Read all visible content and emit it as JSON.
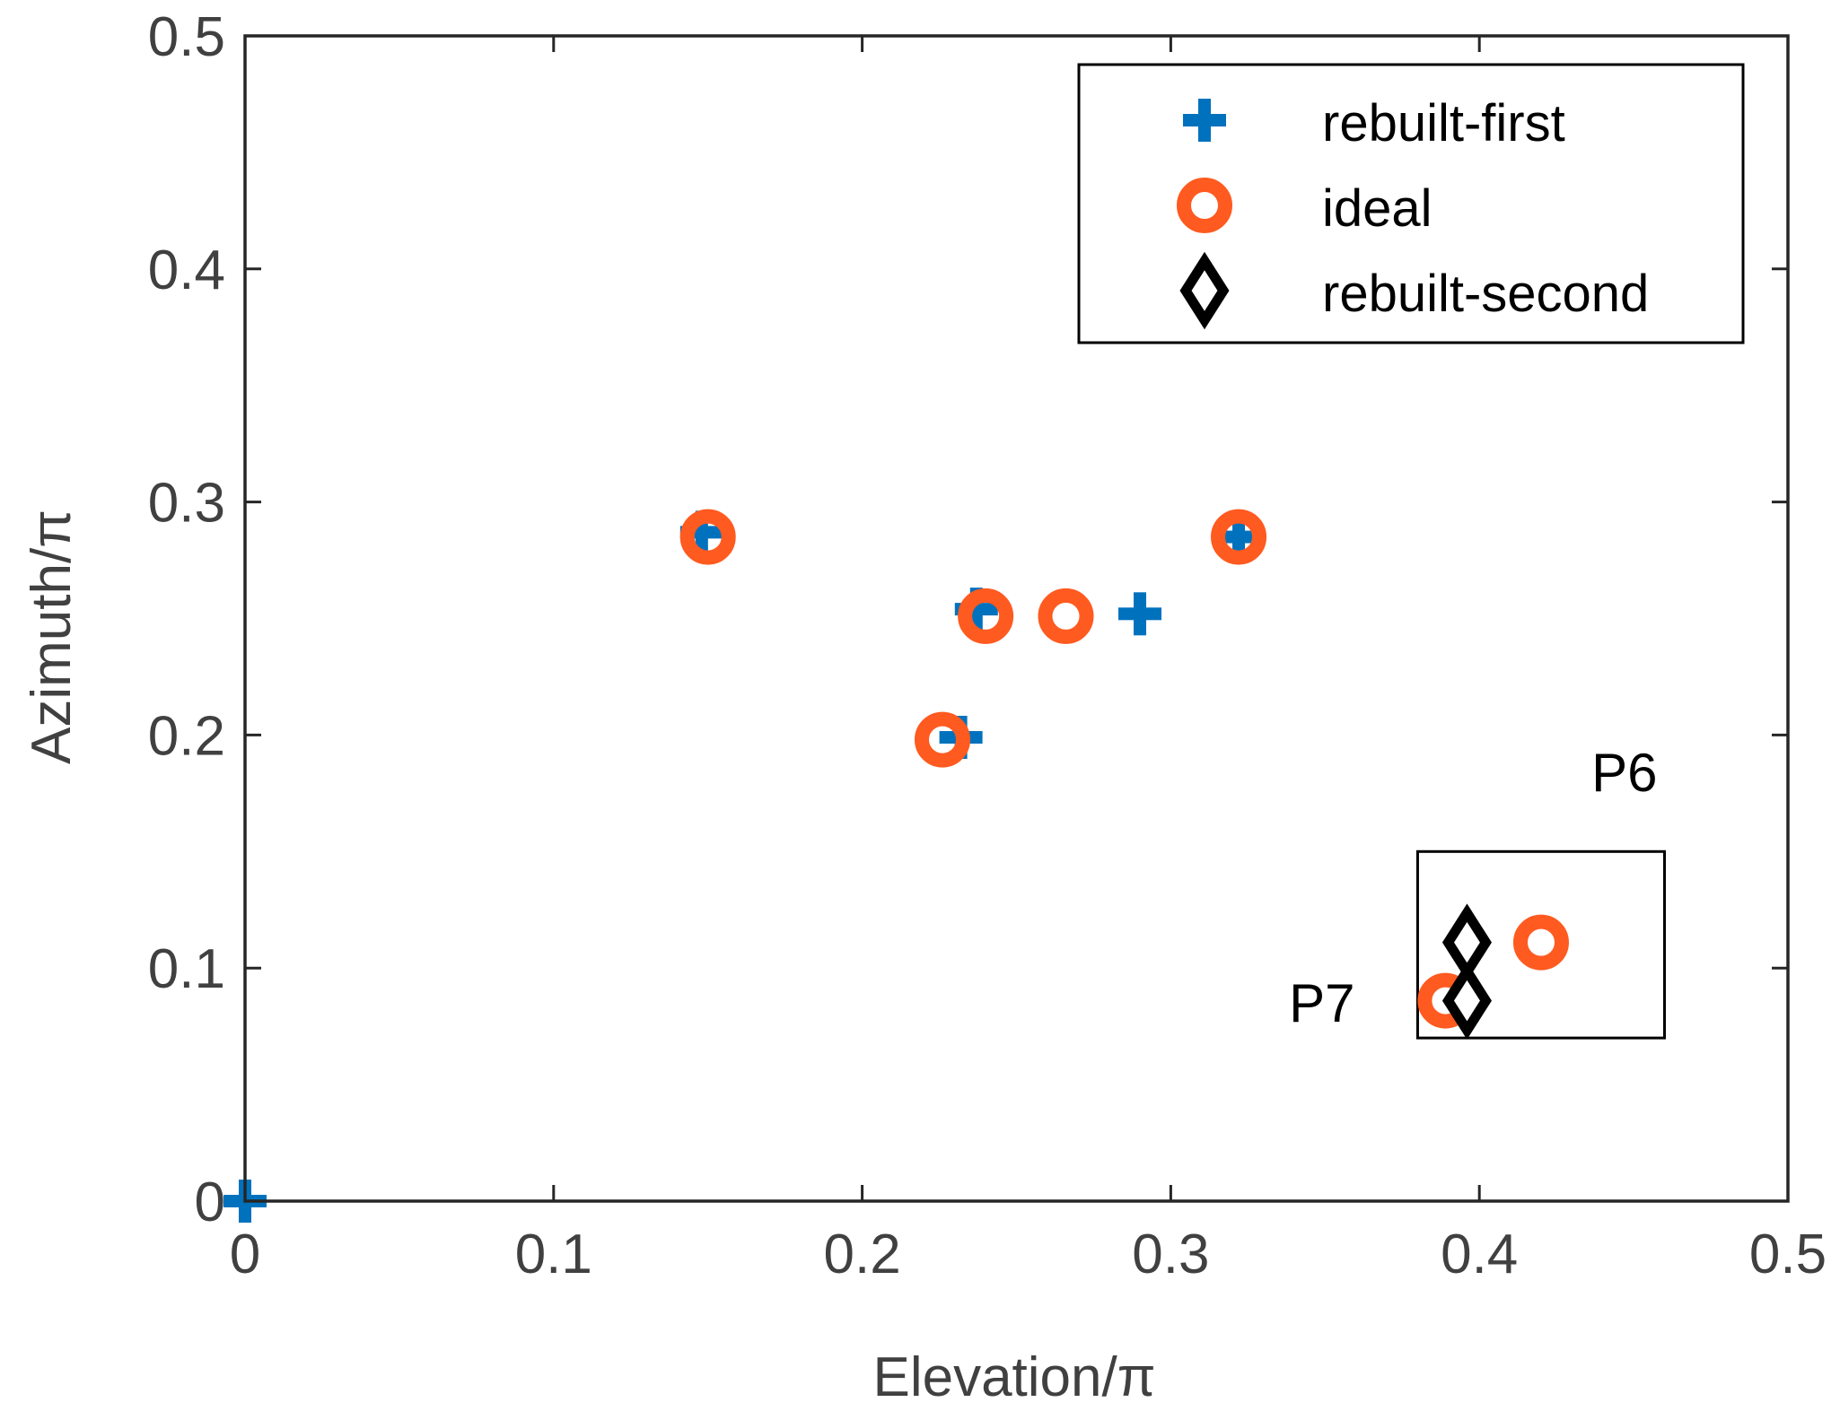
{
  "chart_data": {
    "type": "scatter",
    "title": "",
    "xlabel": "Elevation/π",
    "ylabel": "Azimuth/π",
    "xlim": [
      0,
      0.5
    ],
    "ylim": [
      0,
      0.5
    ],
    "xticks": [
      0,
      0.1,
      0.2,
      0.3,
      0.4,
      0.5
    ],
    "yticks": [
      0,
      0.1,
      0.2,
      0.3,
      0.4,
      0.5
    ],
    "xtick_labels": [
      "0",
      "0.1",
      "0.2",
      "0.3",
      "0.4",
      "0.5"
    ],
    "ytick_labels": [
      "0",
      "0.1",
      "0.2",
      "0.3",
      "0.4",
      "0.5"
    ],
    "grid": false,
    "legend_position": "top-right",
    "series": [
      {
        "name": "rebuilt-first",
        "marker": "plus",
        "color": "#0072BD",
        "points": [
          [
            0.0,
            0.0
          ],
          [
            0.148,
            0.287
          ],
          [
            0.232,
            0.199
          ],
          [
            0.237,
            0.254
          ],
          [
            0.29,
            0.252
          ],
          [
            0.322,
            0.285
          ]
        ]
      },
      {
        "name": "ideal",
        "marker": "circle",
        "color": "#FF5A1F",
        "points": [
          [
            0.15,
            0.285
          ],
          [
            0.226,
            0.198
          ],
          [
            0.24,
            0.251
          ],
          [
            0.266,
            0.251
          ],
          [
            0.322,
            0.285
          ],
          [
            0.42,
            0.111
          ],
          [
            0.389,
            0.086
          ]
        ]
      },
      {
        "name": "rebuilt-second",
        "marker": "diamond",
        "color": "#000000",
        "points": [
          [
            0.396,
            0.111
          ],
          [
            0.396,
            0.086
          ]
        ]
      }
    ],
    "annotations": [
      {
        "text": "P6",
        "x": 0.447,
        "y": 0.176
      },
      {
        "text": "P7",
        "x": 0.349,
        "y": 0.077
      }
    ],
    "highlight_box": {
      "x_range": [
        0.38,
        0.46
      ],
      "y_range": [
        0.07,
        0.15
      ]
    }
  }
}
